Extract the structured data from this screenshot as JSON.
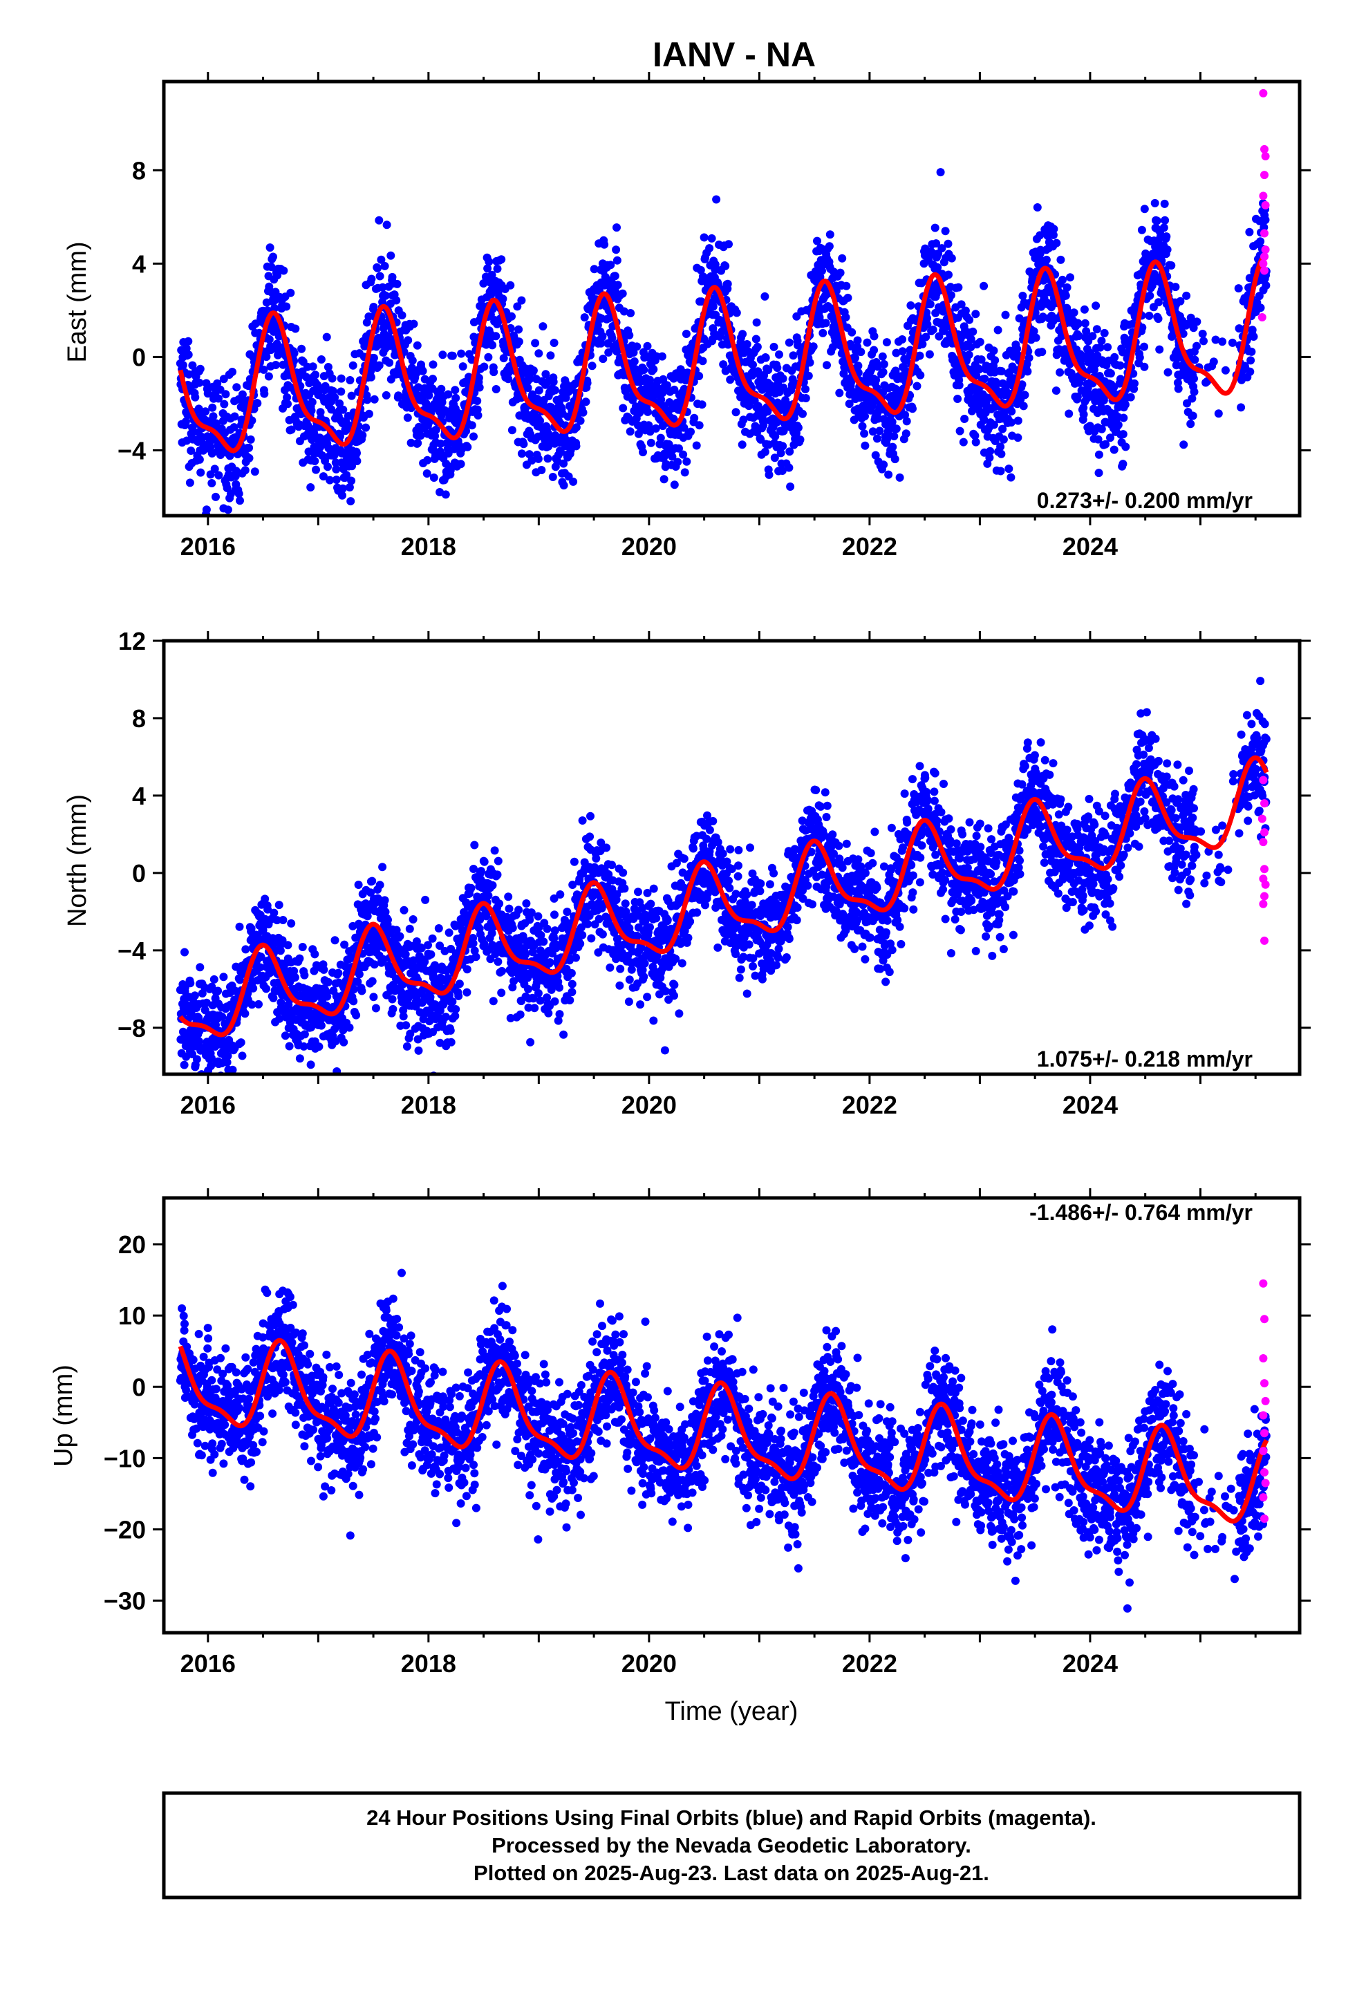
{
  "title": "IANV - NA",
  "footer": {
    "lines": [
      "24 Hour Positions Using Final Orbits (blue) and Rapid Orbits (magenta).",
      "Processed by the Nevada Geodetic Laboratory.",
      "Plotted on 2025-Aug-23. Last data on 2025-Aug-21."
    ]
  },
  "colors": {
    "final_orbits": "#0000ff",
    "rapid_orbits": "#ff00ff",
    "model_fit": "#ff0000",
    "axes": "#000000"
  },
  "chart_data": [
    {
      "type": "scatter",
      "panel": "east",
      "ylabel": "East (mm)",
      "xlabel": "",
      "xlim": [
        2015.6,
        2025.9
      ],
      "ylim": [
        -6.8,
        11.8
      ],
      "xticks": [
        2016,
        2018,
        2020,
        2022,
        2024
      ],
      "yticks": [
        -4,
        0,
        4,
        8
      ],
      "ytick_labels": [
        "−4",
        "0",
        "4",
        "8"
      ],
      "rate_label": "0.273+/- 0.200 mm/yr",
      "rate_position": "bottom-right",
      "model": {
        "start_year": 2015.75,
        "end_year": 2025.6,
        "start_value": 0.0,
        "trend_mm_per_yr": 0.273,
        "annual_amplitude": 2.6,
        "peak_phase_year": 0.62,
        "scatter_sd": 1.3
      },
      "rapid_points": [
        [
          2025.57,
          11.3
        ],
        [
          2025.58,
          8.9
        ],
        [
          2025.59,
          8.6
        ],
        [
          2025.58,
          7.8
        ],
        [
          2025.57,
          6.9
        ],
        [
          2025.59,
          6.5
        ],
        [
          2025.58,
          5.3
        ],
        [
          2025.59,
          4.6
        ],
        [
          2025.58,
          4.3
        ],
        [
          2025.57,
          4.0
        ],
        [
          2025.58,
          3.7
        ],
        [
          2025.56,
          1.7
        ]
      ]
    },
    {
      "type": "scatter",
      "panel": "north",
      "ylabel": "North (mm)",
      "xlabel": "",
      "xlim": [
        2015.6,
        2025.9
      ],
      "ylim": [
        -10.4,
        12.0
      ],
      "xticks": [
        2016,
        2018,
        2020,
        2022,
        2024
      ],
      "yticks": [
        -8,
        -4,
        0,
        4,
        8,
        12
      ],
      "ytick_labels": [
        "−8",
        "−4",
        "0",
        "4",
        "8",
        "12"
      ],
      "rate_label": "1.075+/- 0.218 mm/yr",
      "rate_position": "bottom-right",
      "model": {
        "start_year": 2015.75,
        "end_year": 2025.6,
        "start_value": -6.8,
        "trend_mm_per_yr": 1.075,
        "annual_amplitude": 1.9,
        "peak_phase_year": 0.52,
        "scatter_sd": 1.4
      },
      "rapid_points": [
        [
          2025.57,
          4.8
        ],
        [
          2025.58,
          3.6
        ],
        [
          2025.56,
          2.8
        ],
        [
          2025.58,
          2.1
        ],
        [
          2025.57,
          1.6
        ],
        [
          2025.58,
          0.2
        ],
        [
          2025.57,
          -0.3
        ],
        [
          2025.59,
          -0.6
        ],
        [
          2025.58,
          -1.2
        ],
        [
          2025.57,
          -1.6
        ],
        [
          2025.58,
          -3.5
        ]
      ]
    },
    {
      "type": "scatter",
      "panel": "up",
      "ylabel": "Up (mm)",
      "xlabel": "Time (year)",
      "xlim": [
        2015.6,
        2025.9
      ],
      "ylim": [
        -34.5,
        26.5
      ],
      "xticks": [
        2016,
        2018,
        2020,
        2022,
        2024
      ],
      "yticks": [
        -30,
        -20,
        -10,
        0,
        10,
        20
      ],
      "ytick_labels": [
        "−30",
        "−20",
        "−10",
        "0",
        "10",
        "20"
      ],
      "rate_label": "-1.486+/- 0.764 mm/yr",
      "rate_position": "top-right",
      "model": {
        "start_year": 2015.75,
        "end_year": 2025.6,
        "start_value": 5.5,
        "trend_mm_per_yr": -1.486,
        "annual_amplitude": 5.6,
        "peak_phase_year": 0.68,
        "scatter_sd": 4.2
      },
      "rapid_points": [
        [
          2025.57,
          14.5
        ],
        [
          2025.58,
          9.5
        ],
        [
          2025.57,
          4.0
        ],
        [
          2025.58,
          0.5
        ],
        [
          2025.59,
          -2.0
        ],
        [
          2025.57,
          -4.0
        ],
        [
          2025.58,
          -6.5
        ],
        [
          2025.57,
          -9.0
        ],
        [
          2025.58,
          -12.0
        ],
        [
          2025.59,
          -13.5
        ],
        [
          2025.57,
          -15.5
        ],
        [
          2025.58,
          -18.5
        ]
      ]
    }
  ]
}
